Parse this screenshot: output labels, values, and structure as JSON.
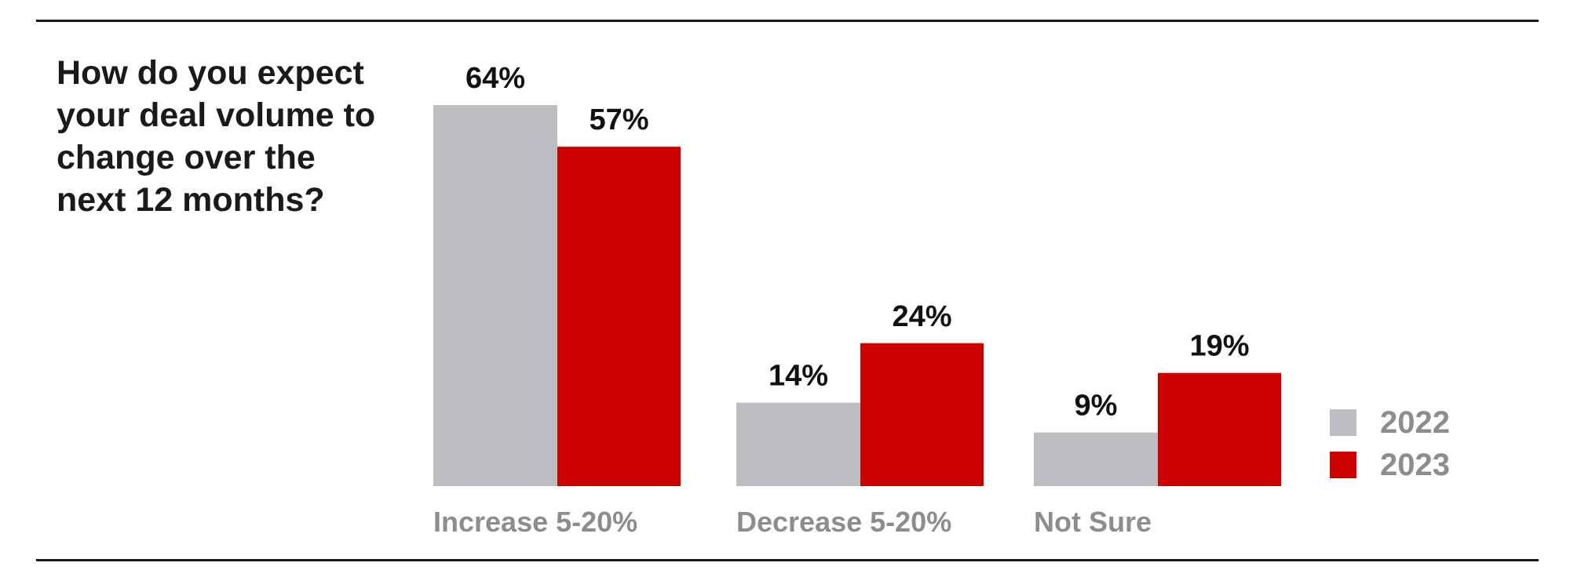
{
  "chart_data": {
    "type": "bar",
    "title": "How do you expect your deal volume to change over the next 12 months?",
    "categories": [
      "Increase 5-20%",
      "Decrease 5-20%",
      "Not Sure"
    ],
    "series": [
      {
        "name": "2022",
        "color": "#bcbdc0",
        "values": [
          64,
          14,
          9
        ],
        "labels": [
          "64%",
          "14%",
          "9%"
        ]
      },
      {
        "name": "2023",
        "color": "#cc0000",
        "values": [
          57,
          24,
          19
        ],
        "labels": [
          "57%",
          "24%",
          "19%"
        ]
      }
    ],
    "ylim": [
      0,
      64
    ],
    "grid": false,
    "legend_position": "right"
  },
  "colors": {
    "series_2022": "#bcbdc0",
    "series_2023": "#cc0000",
    "category_label": "#8d8d8f",
    "value_label": "#111111",
    "text": "#1a1a1a"
  }
}
